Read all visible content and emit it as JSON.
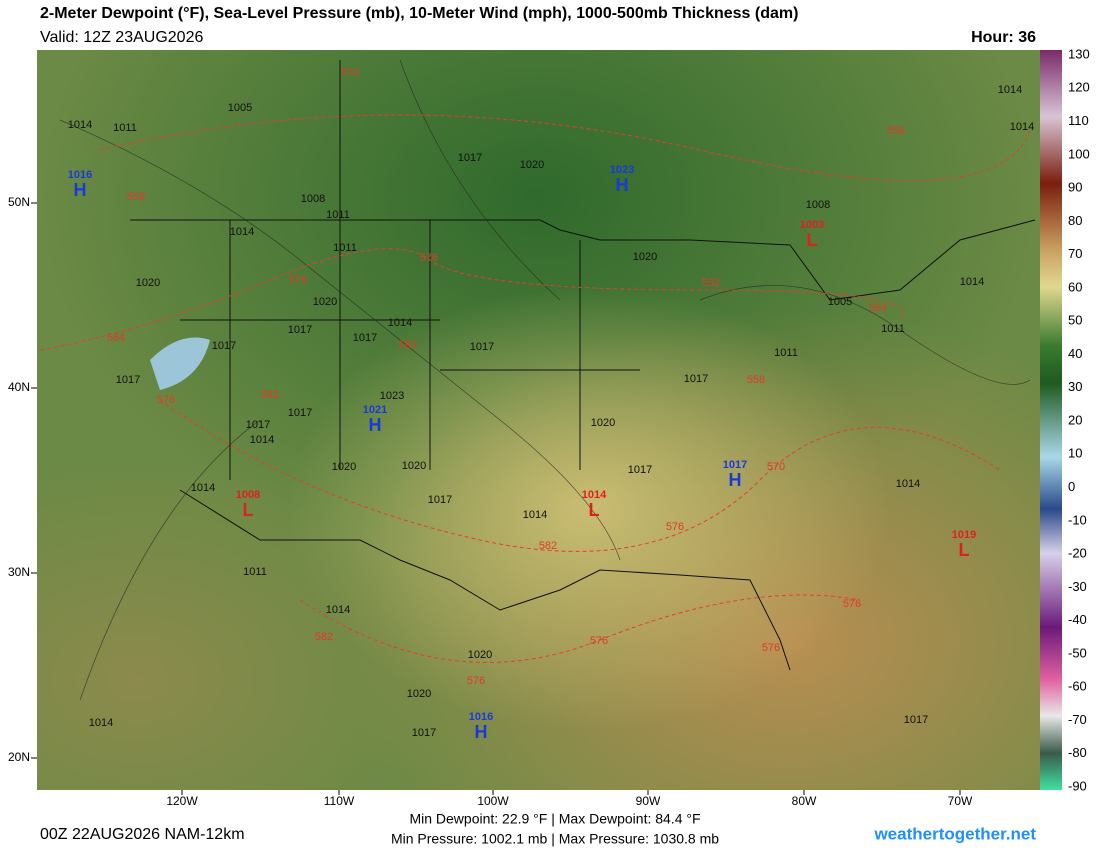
{
  "header": {
    "title": "2-Meter Dewpoint (°F), Sea-Level Pressure (mb), 10-Meter Wind (mph), 1000-500mb Thickness (dam)",
    "valid": "Valid: 12Z 23AUG2026",
    "hour": "Hour: 36"
  },
  "map": {
    "lat_labels": [
      "50N",
      "40N",
      "30N",
      "20N"
    ],
    "lon_labels": [
      "120W",
      "110W",
      "100W",
      "90W",
      "80W",
      "70W"
    ],
    "centers": [
      {
        "symbol": "H",
        "pressure": "1016"
      },
      {
        "symbol": "H",
        "pressure": "1023"
      },
      {
        "symbol": "L",
        "pressure": "1003"
      },
      {
        "symbol": "H",
        "pressure": "1021"
      },
      {
        "symbol": "L",
        "pressure": "1008"
      },
      {
        "symbol": "L",
        "pressure": "1014"
      },
      {
        "symbol": "H",
        "pressure": "1017"
      },
      {
        "symbol": "L",
        "pressure": "1019"
      },
      {
        "symbol": "H",
        "pressure": "1016"
      }
    ],
    "isobar_labels": [
      "1014",
      "1011",
      "1005",
      "1017",
      "1020",
      "1008",
      "1011",
      "1014",
      "1011",
      "1020",
      "1020",
      "1017",
      "1014",
      "1017",
      "1017",
      "1017",
      "1017",
      "1023",
      "1017",
      "1017",
      "1014",
      "1020",
      "1020",
      "1017",
      "1014",
      "1014",
      "1020",
      "1017",
      "1017",
      "1011",
      "1005",
      "1011",
      "1014",
      "1014",
      "1008",
      "1020",
      "1014",
      "1014",
      "1014",
      "1011",
      "1020",
      "1020",
      "1017",
      "1014",
      "1017"
    ],
    "thickness_labels": [
      "570",
      "558",
      "558",
      "576",
      "576",
      "552",
      "564",
      "582",
      "584",
      "558",
      "582",
      "576",
      "570",
      "576",
      "582",
      "576",
      "582",
      "576",
      "576",
      "576"
    ]
  },
  "colorbar": {
    "ticks": [
      130,
      120,
      110,
      100,
      90,
      80,
      70,
      60,
      50,
      40,
      30,
      20,
      10,
      0,
      -10,
      -20,
      -30,
      -40,
      -50,
      -60,
      -70,
      -80,
      -90
    ]
  },
  "footer": {
    "run": "00Z 22AUG2026 NAM-12km",
    "dewpoint_range": "Min Dewpoint: 22.9 °F | Max Dewpoint: 84.4 °F",
    "pressure_range": "Min Pressure: 1002.1 mb | Max Pressure: 1030.8 mb",
    "brand": "weathertogether.net"
  }
}
